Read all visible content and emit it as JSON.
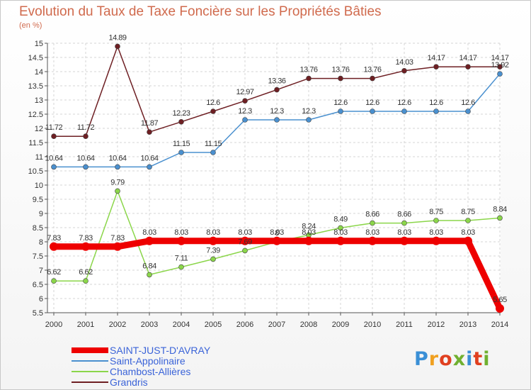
{
  "title": "Evolution du Taux de Taxe Foncière sur les Propriétés Bâties",
  "unit_label": "(en %)",
  "logo": {
    "text": "Proxiti",
    "colors": [
      "#3a8fd6",
      "#f0a020",
      "#e04020",
      "#70b030",
      "#3a8fd6",
      "#e04020",
      "#70b030"
    ]
  },
  "chart_data": {
    "type": "line",
    "title": "Evolution du Taux de Taxe Foncière sur les Propriétés Bâties",
    "ylabel": "(en %)",
    "xlabel": "",
    "ylim": [
      5.5,
      15
    ],
    "yticks": [
      "5.5",
      "6",
      "6.5",
      "7",
      "7.5",
      "8",
      "8.5",
      "9",
      "9.5",
      "10",
      "10.5",
      "11",
      "11.5",
      "12",
      "12.5",
      "13",
      "13.5",
      "14",
      "14.5",
      "15"
    ],
    "categories": [
      "2000",
      "2001",
      "2002",
      "2003",
      "2004",
      "2005",
      "2006",
      "2007",
      "2008",
      "2009",
      "2010",
      "2011",
      "2012",
      "2013",
      "2014"
    ],
    "grid": true,
    "series": [
      {
        "name": "Grandris",
        "color": "#6e1f23",
        "values": [
          11.72,
          11.72,
          14.89,
          11.87,
          12.23,
          12.6,
          12.97,
          13.36,
          13.76,
          13.76,
          13.76,
          14.03,
          14.17,
          14.17,
          14.17
        ],
        "labels": [
          "11.72",
          "11.72",
          "14.89",
          "11.87",
          "12.23",
          "12.6",
          "12.97",
          "13.36",
          "13.76",
          "13.76",
          "13.76",
          "14.03",
          "14.17",
          "14.17",
          "14.17"
        ]
      },
      {
        "name": "Saint-Appolinaire",
        "color": "#4a90cf",
        "values": [
          10.64,
          10.64,
          10.64,
          10.64,
          11.15,
          11.15,
          12.3,
          12.3,
          12.3,
          12.6,
          12.6,
          12.6,
          12.6,
          12.6,
          13.92
        ],
        "labels": [
          "10.64",
          "10.64",
          "10.64",
          "10.64",
          "11.15",
          "11.15",
          "12.3",
          "12.3",
          "12.3",
          "12.6",
          "12.6",
          "12.6",
          "12.6",
          "12.6",
          "13.92"
        ]
      },
      {
        "name": "Chambost-Allières",
        "color": "#8bd64a",
        "values": [
          6.62,
          6.62,
          9.79,
          6.84,
          7.11,
          7.39,
          7.69,
          8,
          8.24,
          8.49,
          8.66,
          8.66,
          8.75,
          8.75,
          8.84
        ],
        "labels": [
          "6.62",
          "6.62",
          "9.79",
          "6.84",
          "7.11",
          "7.39",
          "7.69",
          "8",
          "8.24",
          "8.49",
          "8.66",
          "8.66",
          "8.75",
          "8.75",
          "8.84"
        ]
      },
      {
        "name": "SAINT-JUST-D'AVRAY",
        "color": "#ee0000",
        "values": [
          7.83,
          7.83,
          7.83,
          8.03,
          8.03,
          8.03,
          8.03,
          8.03,
          8.03,
          8.03,
          8.03,
          8.03,
          8.03,
          8.03,
          5.65
        ],
        "labels": [
          "7.83",
          "7.83",
          "7.83",
          "8.03",
          "8.03",
          "8.03",
          "8.03",
          "8.03",
          "8.03",
          "8.03",
          "8.03",
          "8.03",
          "8.03",
          "8.03",
          "5.65"
        ]
      }
    ],
    "legend": [
      "SAINT-JUST-D'AVRAY",
      "Saint-Appolinaire",
      "Chambost-Allières",
      "Grandris"
    ]
  }
}
